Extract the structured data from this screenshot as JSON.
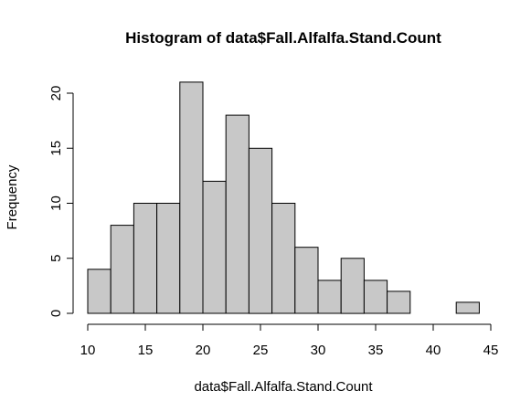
{
  "chart_data": {
    "type": "bar",
    "title": "Histogram of data$Fall.Alfalfa.Stand.Count",
    "xlabel": "data$Fall.Alfalfa.Stand.Count",
    "ylabel": "Frequency",
    "bins": [
      {
        "start": 10,
        "end": 12,
        "count": 4
      },
      {
        "start": 12,
        "end": 14,
        "count": 8
      },
      {
        "start": 14,
        "end": 16,
        "count": 10
      },
      {
        "start": 16,
        "end": 18,
        "count": 10
      },
      {
        "start": 18,
        "end": 20,
        "count": 21
      },
      {
        "start": 20,
        "end": 22,
        "count": 12
      },
      {
        "start": 22,
        "end": 24,
        "count": 18
      },
      {
        "start": 24,
        "end": 26,
        "count": 15
      },
      {
        "start": 26,
        "end": 28,
        "count": 10
      },
      {
        "start": 28,
        "end": 30,
        "count": 6
      },
      {
        "start": 30,
        "end": 32,
        "count": 3
      },
      {
        "start": 32,
        "end": 34,
        "count": 5
      },
      {
        "start": 34,
        "end": 36,
        "count": 3
      },
      {
        "start": 36,
        "end": 38,
        "count": 2
      },
      {
        "start": 38,
        "end": 40,
        "count": 0
      },
      {
        "start": 40,
        "end": 42,
        "count": 0
      },
      {
        "start": 42,
        "end": 44,
        "count": 1
      }
    ],
    "xlim": [
      10,
      45
    ],
    "ylim": [
      0,
      20
    ],
    "xticks": [
      10,
      15,
      20,
      25,
      30,
      35,
      40,
      45
    ],
    "yticks": [
      0,
      5,
      10,
      15,
      20
    ],
    "bar_color": "#c8c8c8",
    "edge_color": "#000000",
    "grid": false
  }
}
